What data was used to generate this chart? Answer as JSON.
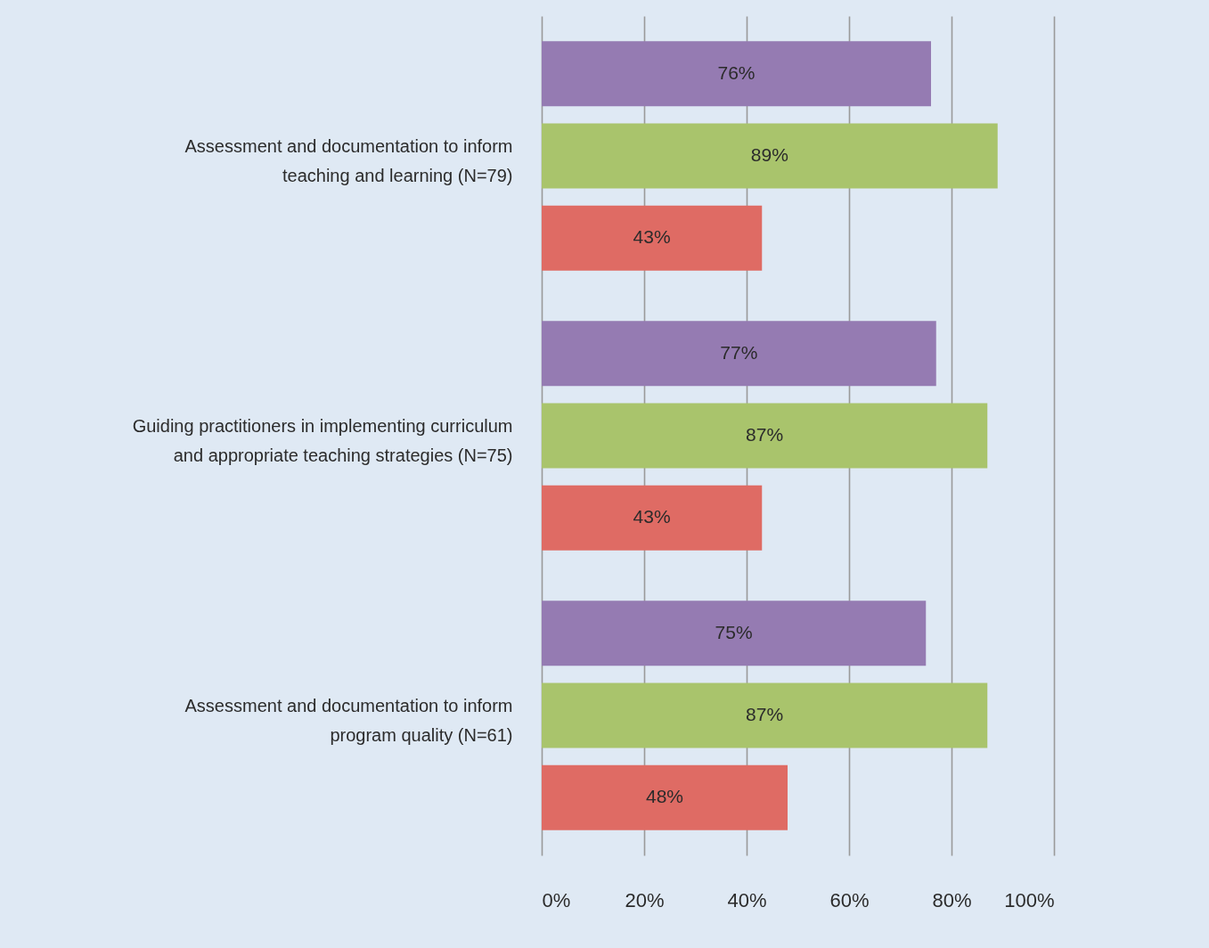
{
  "chart_data": {
    "type": "bar",
    "orientation": "horizontal",
    "categories": [
      "Assessment and documentation to inform\nteaching and learning (N=79)",
      "Guiding practitioners in implementing curriculum\nand appropriate teaching strategies (N=75)",
      "Assessment and documentation to inform\nprogram quality (N=61)"
    ],
    "series": [
      {
        "color": "#957bb2",
        "values": [
          76,
          77,
          75
        ],
        "value_labels": [
          "76%",
          "77%",
          "75%"
        ]
      },
      {
        "color": "#a9c46c",
        "values": [
          89,
          87,
          87
        ],
        "value_labels": [
          "89%",
          "87%",
          "87%"
        ]
      },
      {
        "color": "#df6b64",
        "values": [
          43,
          43,
          48
        ],
        "value_labels": [
          "43%",
          "43%",
          "48%"
        ]
      }
    ],
    "xlim": [
      0,
      100
    ],
    "xticks": [
      {
        "value": 0,
        "label": "0%"
      },
      {
        "value": 20,
        "label": "20%"
      },
      {
        "value": 40,
        "label": "40%"
      },
      {
        "value": 60,
        "label": "60%"
      },
      {
        "value": 80,
        "label": "80%"
      },
      {
        "value": 100,
        "label": "100%"
      }
    ],
    "grid": "x"
  }
}
